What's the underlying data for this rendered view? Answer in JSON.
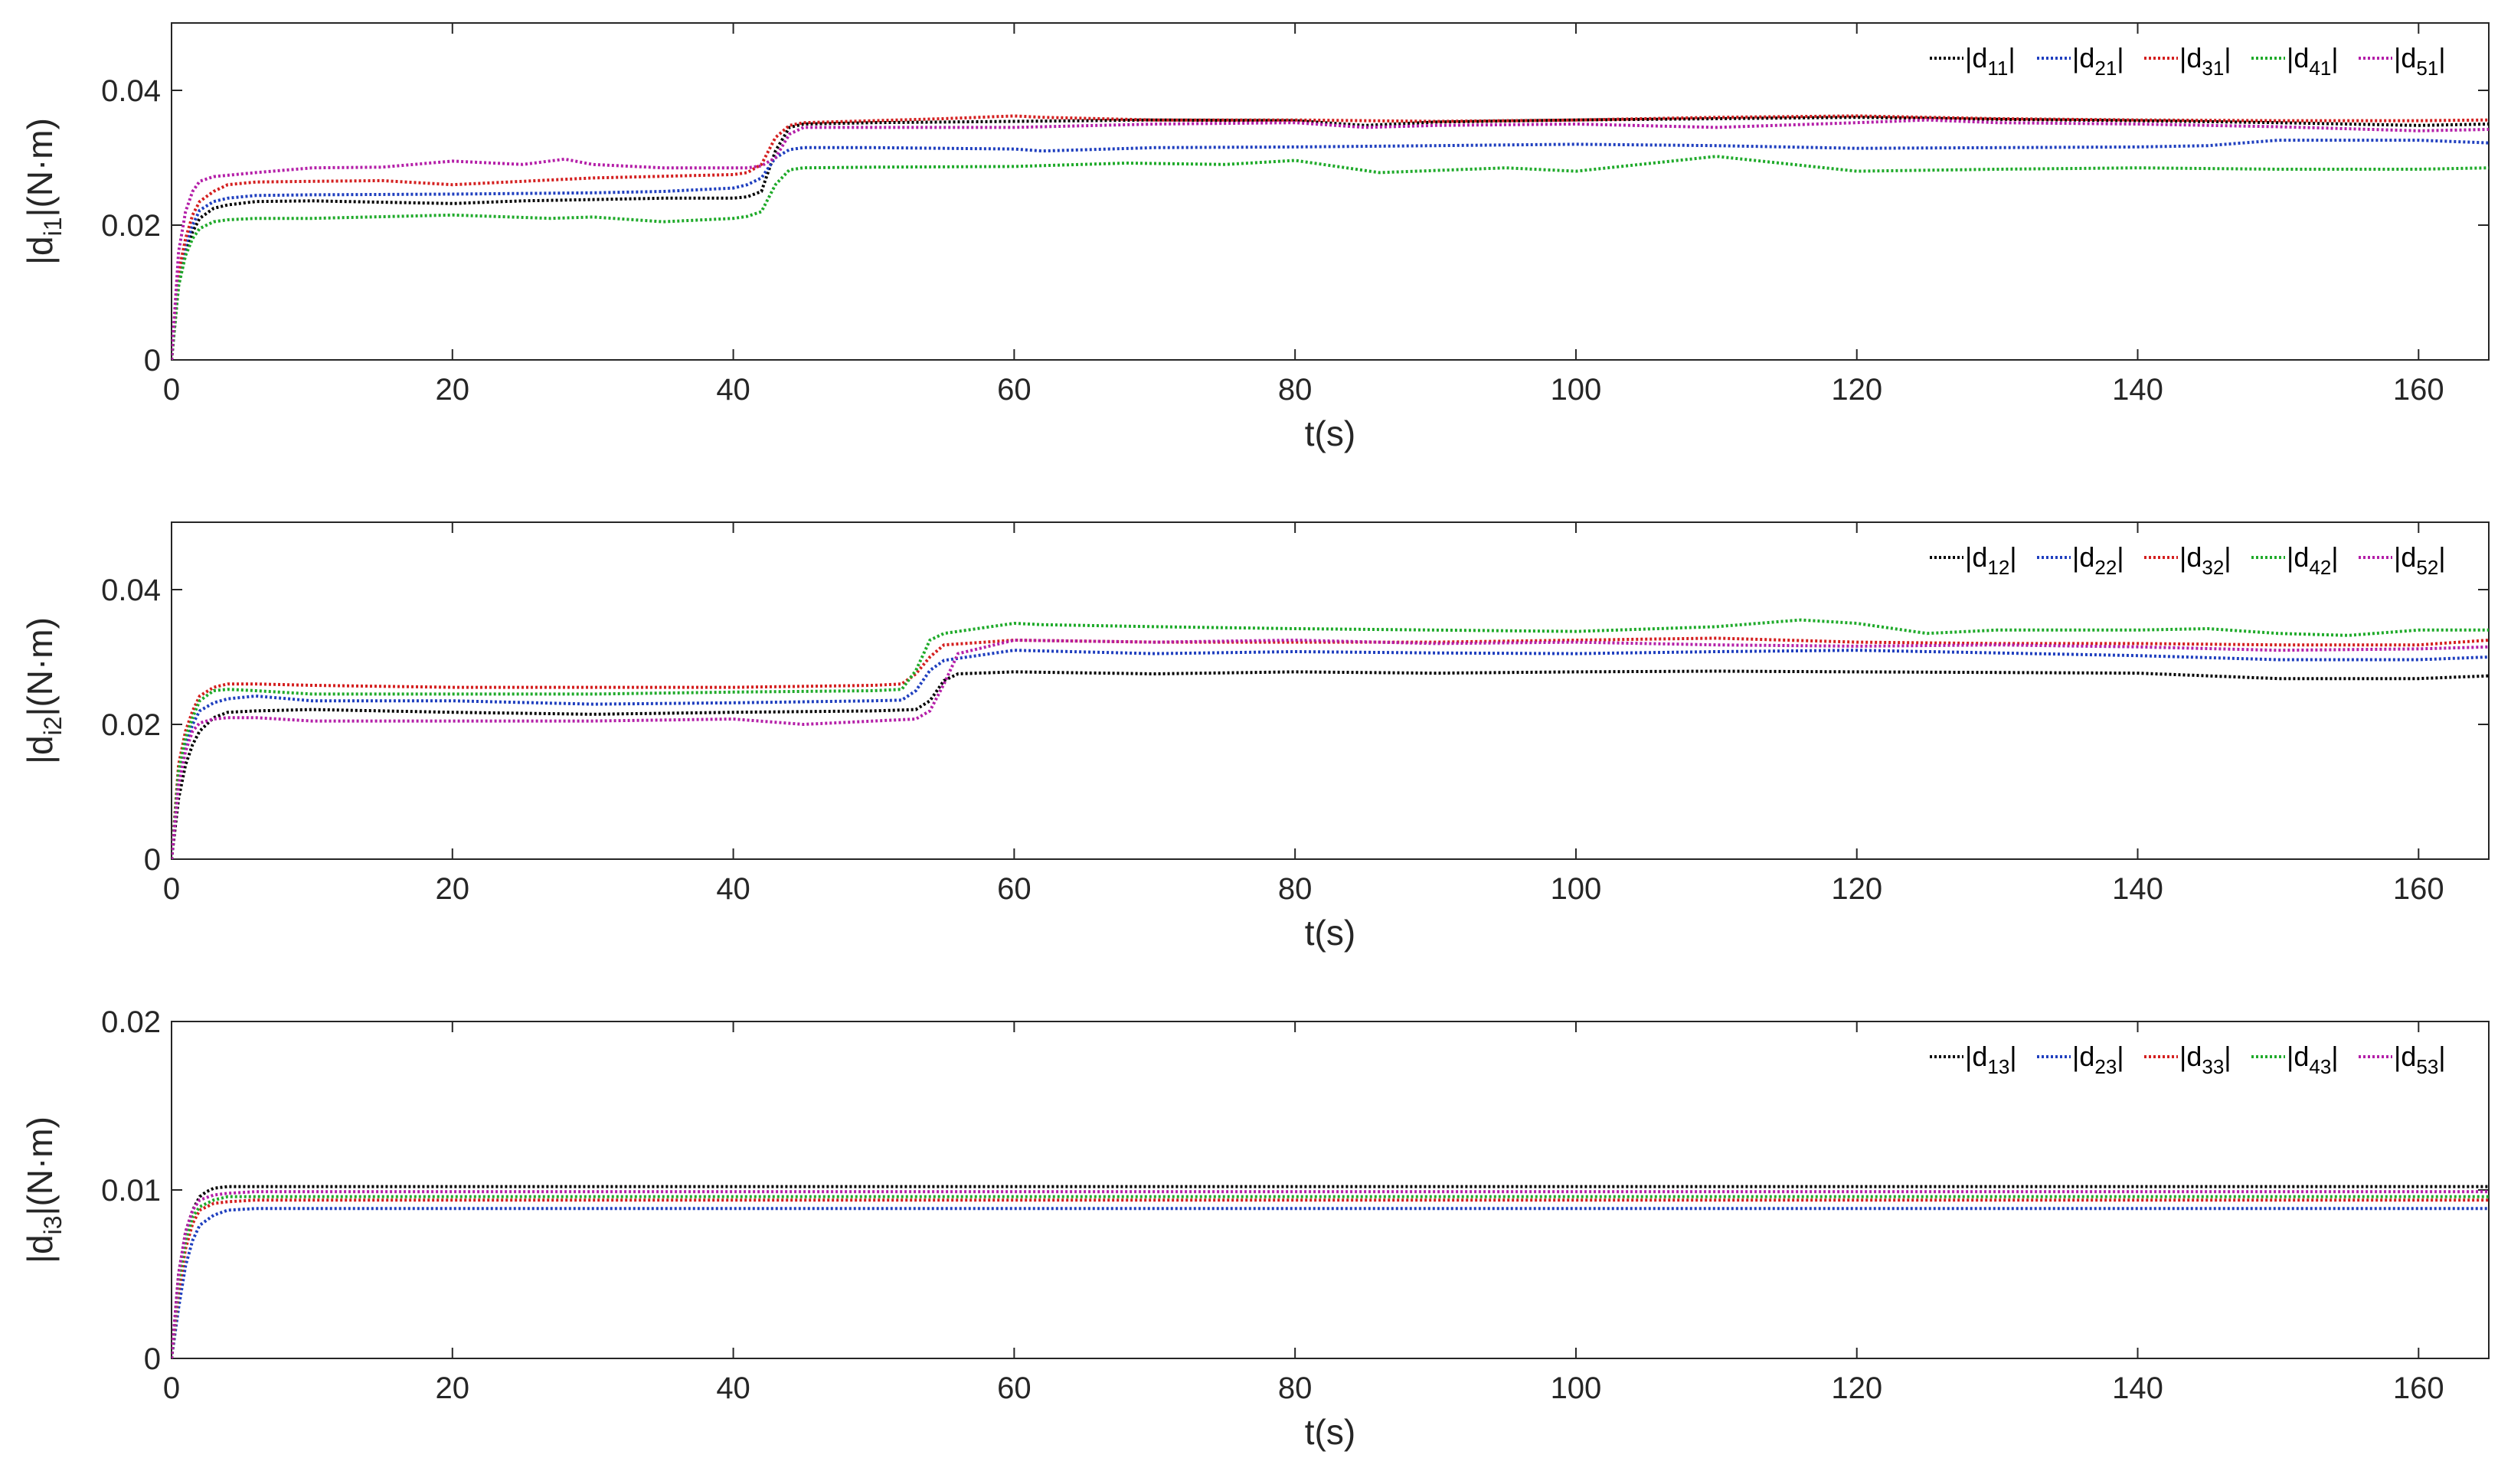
{
  "chart_data": [
    {
      "type": "line",
      "xlabel": "t(s)",
      "ylabel_main": "|d",
      "ylabel_sub": "i1",
      "ylabel_tail": "|(N·m)",
      "xlim": [
        0,
        165
      ],
      "ylim": [
        0,
        0.05
      ],
      "xticks": [
        "0",
        "20",
        "40",
        "60",
        "80",
        "100",
        "120",
        "140",
        "160"
      ],
      "yticks": [
        "0",
        "0.02",
        "0.04"
      ],
      "series": [
        {
          "name": "|d11|",
          "name_main": "|d",
          "name_sub": "11",
          "name_tail": "|",
          "color": "#000000",
          "x": [
            0,
            0.5,
            1,
            1.5,
            2,
            3,
            4,
            6,
            10,
            15,
            20,
            25,
            30,
            35,
            40,
            41,
            42,
            43,
            44,
            45,
            50,
            60,
            70,
            80,
            85,
            90,
            100,
            110,
            120,
            130,
            140,
            150,
            160,
            165
          ],
          "y": [
            0,
            0.011,
            0.016,
            0.019,
            0.021,
            0.0225,
            0.023,
            0.0235,
            0.0236,
            0.0234,
            0.0232,
            0.0236,
            0.0238,
            0.024,
            0.024,
            0.0242,
            0.025,
            0.031,
            0.0345,
            0.035,
            0.0352,
            0.0354,
            0.0356,
            0.0355,
            0.0348,
            0.0353,
            0.0356,
            0.0358,
            0.036,
            0.0357,
            0.0355,
            0.0352,
            0.0348,
            0.035
          ]
        },
        {
          "name": "|d21|",
          "name_main": "|d",
          "name_sub": "21",
          "name_tail": "|",
          "color": "#1f3fbf",
          "x": [
            0,
            0.5,
            1,
            1.5,
            2,
            3,
            4,
            6,
            10,
            20,
            30,
            35,
            40,
            41,
            42,
            43,
            44,
            45,
            50,
            60,
            62,
            70,
            80,
            90,
            100,
            110,
            120,
            130,
            140,
            145,
            150,
            160,
            165
          ],
          "y": [
            0,
            0.012,
            0.017,
            0.02,
            0.0222,
            0.0235,
            0.024,
            0.0244,
            0.0245,
            0.0246,
            0.0248,
            0.025,
            0.0255,
            0.026,
            0.027,
            0.03,
            0.0312,
            0.0315,
            0.0315,
            0.0313,
            0.031,
            0.0315,
            0.0316,
            0.0318,
            0.032,
            0.0318,
            0.0314,
            0.0315,
            0.0316,
            0.0318,
            0.0326,
            0.0326,
            0.0322
          ]
        },
        {
          "name": "|d31|",
          "name_main": "|d",
          "name_sub": "31",
          "name_tail": "|",
          "color": "#d41f1f",
          "x": [
            0,
            0.5,
            1,
            1.5,
            2,
            3,
            4,
            6,
            10,
            15,
            20,
            30,
            40,
            41,
            42,
            43,
            44,
            45,
            50,
            55,
            60,
            62,
            70,
            80,
            90,
            100,
            110,
            120,
            130,
            140,
            150,
            160,
            165
          ],
          "y": [
            0,
            0.013,
            0.018,
            0.0215,
            0.0235,
            0.025,
            0.026,
            0.0264,
            0.0265,
            0.0266,
            0.026,
            0.027,
            0.0275,
            0.0278,
            0.029,
            0.033,
            0.0348,
            0.0352,
            0.0355,
            0.0358,
            0.0362,
            0.036,
            0.0356,
            0.0356,
            0.0354,
            0.0356,
            0.036,
            0.0362,
            0.0358,
            0.0356,
            0.0355,
            0.0355,
            0.0356
          ]
        },
        {
          "name": "|d41|",
          "name_main": "|d",
          "name_sub": "41",
          "name_tail": "|",
          "color": "#1faa2a",
          "x": [
            0,
            0.5,
            1,
            1.5,
            2,
            3,
            4,
            6,
            10,
            20,
            27,
            30,
            35,
            40,
            41,
            42,
            43,
            44,
            45,
            50,
            60,
            68,
            75,
            80,
            86,
            95,
            100,
            110,
            120,
            130,
            140,
            150,
            160,
            165
          ],
          "y": [
            0,
            0.011,
            0.0155,
            0.018,
            0.0195,
            0.0205,
            0.0208,
            0.021,
            0.021,
            0.0215,
            0.021,
            0.0212,
            0.0205,
            0.021,
            0.0213,
            0.022,
            0.026,
            0.0282,
            0.0285,
            0.0286,
            0.0287,
            0.0292,
            0.029,
            0.0296,
            0.0278,
            0.0285,
            0.028,
            0.0302,
            0.028,
            0.0283,
            0.0285,
            0.0283,
            0.0283,
            0.0285
          ]
        },
        {
          "name": "|d51|",
          "name_main": "|d",
          "name_sub": "51",
          "name_tail": "|",
          "color": "#b41fa8",
          "x": [
            0,
            0.5,
            1,
            1.5,
            2,
            3,
            4,
            6,
            10,
            15,
            20,
            25,
            28,
            30,
            35,
            40,
            41,
            42,
            43,
            44,
            45,
            50,
            60,
            70,
            80,
            85,
            90,
            100,
            110,
            120,
            125,
            130,
            140,
            150,
            160,
            165
          ],
          "y": [
            0,
            0.016,
            0.022,
            0.025,
            0.0265,
            0.0272,
            0.0274,
            0.0278,
            0.0285,
            0.0286,
            0.0295,
            0.029,
            0.0298,
            0.029,
            0.0285,
            0.0285,
            0.0285,
            0.0288,
            0.03,
            0.0335,
            0.0345,
            0.0345,
            0.0345,
            0.035,
            0.0352,
            0.0345,
            0.0348,
            0.035,
            0.0345,
            0.0352,
            0.0356,
            0.0352,
            0.035,
            0.0346,
            0.034,
            0.0342
          ]
        }
      ]
    },
    {
      "type": "line",
      "xlabel": "t(s)",
      "ylabel_main": "|d",
      "ylabel_sub": "i2",
      "ylabel_tail": "|(N·m)",
      "xlim": [
        0,
        165
      ],
      "ylim": [
        0,
        0.05
      ],
      "xticks": [
        "0",
        "20",
        "40",
        "60",
        "80",
        "100",
        "120",
        "140",
        "160"
      ],
      "yticks": [
        "0",
        "0.02",
        "0.04"
      ],
      "series": [
        {
          "name": "|d12|",
          "name_main": "|d",
          "name_sub": "12",
          "name_tail": "|",
          "color": "#000000",
          "x": [
            0,
            0.5,
            1,
            1.5,
            2,
            3,
            4,
            6,
            10,
            20,
            30,
            40,
            50,
            53,
            54,
            55,
            56,
            60,
            70,
            80,
            90,
            100,
            110,
            120,
            130,
            140,
            145,
            150,
            160,
            165
          ],
          "y": [
            0,
            0.009,
            0.014,
            0.017,
            0.019,
            0.021,
            0.0218,
            0.022,
            0.0222,
            0.0218,
            0.0215,
            0.0218,
            0.022,
            0.0222,
            0.0235,
            0.0265,
            0.0275,
            0.0278,
            0.0275,
            0.0278,
            0.0276,
            0.0278,
            0.0279,
            0.0278,
            0.0277,
            0.0276,
            0.0272,
            0.0268,
            0.0268,
            0.0272
          ]
        },
        {
          "name": "|d22|",
          "name_main": "|d",
          "name_sub": "22",
          "name_tail": "|",
          "color": "#1f3fbf",
          "x": [
            0,
            0.5,
            1,
            1.5,
            2,
            3,
            4,
            6,
            10,
            20,
            30,
            40,
            50,
            52,
            53,
            54,
            55,
            60,
            70,
            80,
            90,
            100,
            110,
            120,
            130,
            140,
            150,
            160,
            165
          ],
          "y": [
            0,
            0.012,
            0.017,
            0.02,
            0.022,
            0.0232,
            0.0238,
            0.0242,
            0.0235,
            0.0235,
            0.023,
            0.0232,
            0.0235,
            0.0236,
            0.025,
            0.028,
            0.0295,
            0.031,
            0.0305,
            0.0308,
            0.0306,
            0.0305,
            0.0308,
            0.031,
            0.0306,
            0.0302,
            0.0296,
            0.0296,
            0.03
          ]
        },
        {
          "name": "|d32|",
          "name_main": "|d",
          "name_sub": "32",
          "name_tail": "|",
          "color": "#d41f1f",
          "x": [
            0,
            0.5,
            1,
            1.5,
            2,
            3,
            4,
            6,
            10,
            20,
            30,
            40,
            50,
            52,
            53,
            54,
            55,
            60,
            70,
            80,
            90,
            100,
            110,
            120,
            130,
            140,
            150,
            160,
            165
          ],
          "y": [
            0,
            0.014,
            0.019,
            0.022,
            0.0242,
            0.0255,
            0.026,
            0.026,
            0.0258,
            0.0255,
            0.0255,
            0.0255,
            0.0258,
            0.026,
            0.0275,
            0.03,
            0.0318,
            0.0325,
            0.0322,
            0.0322,
            0.0322,
            0.0325,
            0.0328,
            0.0322,
            0.032,
            0.032,
            0.0318,
            0.0318,
            0.0325
          ]
        },
        {
          "name": "|d42|",
          "name_main": "|d",
          "name_sub": "42",
          "name_tail": "|",
          "color": "#1faa2a",
          "x": [
            0,
            0.5,
            1,
            1.5,
            2,
            3,
            4,
            6,
            10,
            20,
            30,
            40,
            50,
            52,
            53,
            54,
            55,
            60,
            62,
            70,
            80,
            90,
            100,
            110,
            116,
            120,
            125,
            130,
            140,
            145,
            150,
            155,
            160,
            165
          ],
          "y": [
            0,
            0.013,
            0.018,
            0.021,
            0.0235,
            0.025,
            0.0252,
            0.025,
            0.0245,
            0.0245,
            0.0245,
            0.0248,
            0.025,
            0.0252,
            0.028,
            0.0325,
            0.0335,
            0.035,
            0.0348,
            0.0345,
            0.0342,
            0.034,
            0.0338,
            0.0345,
            0.0355,
            0.035,
            0.0335,
            0.034,
            0.034,
            0.0342,
            0.0335,
            0.0332,
            0.034,
            0.034
          ]
        },
        {
          "name": "|d52|",
          "name_main": "|d",
          "name_sub": "52",
          "name_tail": "|",
          "color": "#b41fa8",
          "x": [
            0,
            0.5,
            1,
            1.5,
            2,
            3,
            4,
            6,
            10,
            20,
            30,
            40,
            45,
            50,
            53,
            54,
            55,
            56,
            60,
            70,
            80,
            90,
            100,
            110,
            120,
            130,
            140,
            150,
            160,
            165
          ],
          "y": [
            0,
            0.011,
            0.016,
            0.019,
            0.0202,
            0.0208,
            0.021,
            0.021,
            0.0205,
            0.0205,
            0.0205,
            0.0208,
            0.02,
            0.0205,
            0.0208,
            0.022,
            0.026,
            0.0305,
            0.0325,
            0.0322,
            0.0325,
            0.032,
            0.0322,
            0.0318,
            0.0316,
            0.0318,
            0.0315,
            0.031,
            0.0312,
            0.0315
          ]
        }
      ]
    },
    {
      "type": "line",
      "xlabel": "t(s)",
      "ylabel_main": "|d",
      "ylabel_sub": "i3",
      "ylabel_tail": "|(N·m)",
      "xlim": [
        0,
        165
      ],
      "ylim": [
        0,
        0.02
      ],
      "xticks": [
        "0",
        "20",
        "40",
        "60",
        "80",
        "100",
        "120",
        "140",
        "160"
      ],
      "yticks": [
        "0",
        "0.01",
        "0.02"
      ],
      "series": [
        {
          "name": "|d13|",
          "name_main": "|d",
          "name_sub": "13",
          "name_tail": "|",
          "color": "#000000",
          "x": [
            0,
            0.5,
            1,
            1.5,
            2,
            2.5,
            3,
            4,
            6,
            10,
            40,
            80,
            120,
            165
          ],
          "y": [
            0,
            0.005,
            0.0075,
            0.0088,
            0.0096,
            0.0099,
            0.0101,
            0.0102,
            0.0102,
            0.0102,
            0.0102,
            0.0102,
            0.0102,
            0.0102
          ]
        },
        {
          "name": "|d23|",
          "name_main": "|d",
          "name_sub": "23",
          "name_tail": "|",
          "color": "#1f3fbf",
          "x": [
            0,
            0.5,
            1,
            1.5,
            2,
            3,
            4,
            6,
            10,
            40,
            80,
            120,
            165
          ],
          "y": [
            0,
            0.003,
            0.0055,
            0.007,
            0.0079,
            0.0085,
            0.0088,
            0.0089,
            0.0089,
            0.0089,
            0.0089,
            0.0089,
            0.0089
          ]
        },
        {
          "name": "|d33|",
          "name_main": "|d",
          "name_sub": "33",
          "name_tail": "|",
          "color": "#d41f1f",
          "x": [
            0,
            0.5,
            1,
            1.5,
            2,
            3,
            4,
            6,
            10,
            40,
            80,
            120,
            165
          ],
          "y": [
            0,
            0.004,
            0.0065,
            0.008,
            0.0088,
            0.0092,
            0.0093,
            0.0094,
            0.0094,
            0.0094,
            0.0094,
            0.0094,
            0.0094
          ]
        },
        {
          "name": "|d43|",
          "name_main": "|d",
          "name_sub": "43",
          "name_tail": "|",
          "color": "#1faa2a",
          "x": [
            0,
            0.5,
            1,
            1.5,
            2,
            3,
            4,
            6,
            10,
            40,
            80,
            120,
            165
          ],
          "y": [
            0,
            0.0045,
            0.007,
            0.0084,
            0.009,
            0.0094,
            0.0096,
            0.0096,
            0.0096,
            0.0096,
            0.0096,
            0.0096,
            0.0096
          ]
        },
        {
          "name": "|d53|",
          "name_main": "|d",
          "name_sub": "53",
          "name_tail": "|",
          "color": "#b41fa8",
          "x": [
            0,
            0.5,
            1,
            1.5,
            2,
            3,
            4,
            6,
            10,
            40,
            80,
            120,
            165
          ],
          "y": [
            0,
            0.005,
            0.0075,
            0.0088,
            0.0094,
            0.0097,
            0.0098,
            0.0099,
            0.0099,
            0.0099,
            0.0099,
            0.0099,
            0.0099
          ]
        }
      ]
    }
  ]
}
